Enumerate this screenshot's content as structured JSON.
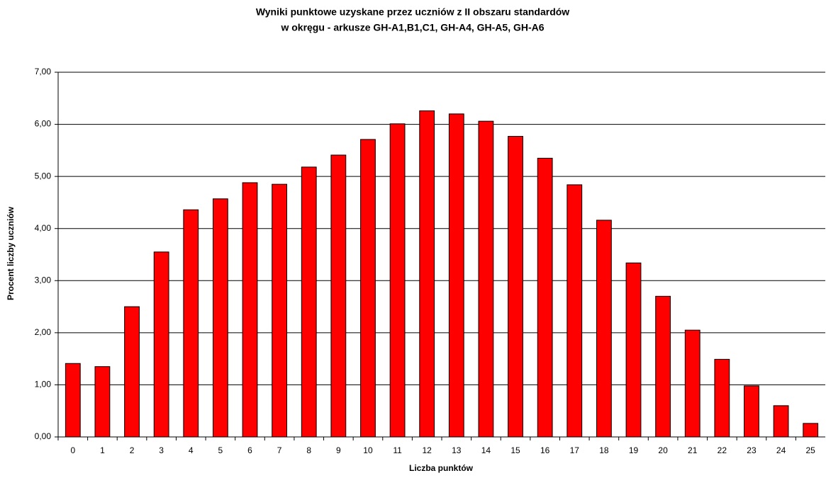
{
  "chart_data": {
    "type": "bar",
    "title": [
      "Wyniki punktowe uzyskane przez uczniów z II obszaru standardów",
      "w okręgu - arkusze GH-A1,B1,C1, GH-A4, GH-A5, GH-A6"
    ],
    "xlabel": "Liczba punktów",
    "ylabel": "Procent liczby uczniów",
    "categories": [
      "0",
      "1",
      "2",
      "3",
      "4",
      "5",
      "6",
      "7",
      "8",
      "9",
      "10",
      "11",
      "12",
      "13",
      "14",
      "15",
      "16",
      "17",
      "18",
      "19",
      "20",
      "21",
      "22",
      "23",
      "24",
      "25"
    ],
    "values": [
      1.41,
      1.35,
      2.5,
      3.55,
      4.36,
      4.57,
      4.88,
      4.85,
      5.18,
      5.41,
      5.71,
      6.01,
      6.26,
      6.2,
      6.06,
      5.77,
      5.35,
      4.84,
      4.16,
      3.34,
      2.7,
      2.05,
      1.49,
      0.98,
      0.6,
      0.26
    ],
    "color": "#ff0000",
    "ylim": [
      0,
      7
    ],
    "yticks": [
      {
        "value": 0,
        "label": "0,00"
      },
      {
        "value": 1,
        "label": "1,00"
      },
      {
        "value": 2,
        "label": "2,00"
      },
      {
        "value": 3,
        "label": "3,00"
      },
      {
        "value": 4,
        "label": "4,00"
      },
      {
        "value": 5,
        "label": "5,00"
      },
      {
        "value": 6,
        "label": "6,00"
      },
      {
        "value": 7,
        "label": "7,00"
      }
    ],
    "grid": true
  }
}
